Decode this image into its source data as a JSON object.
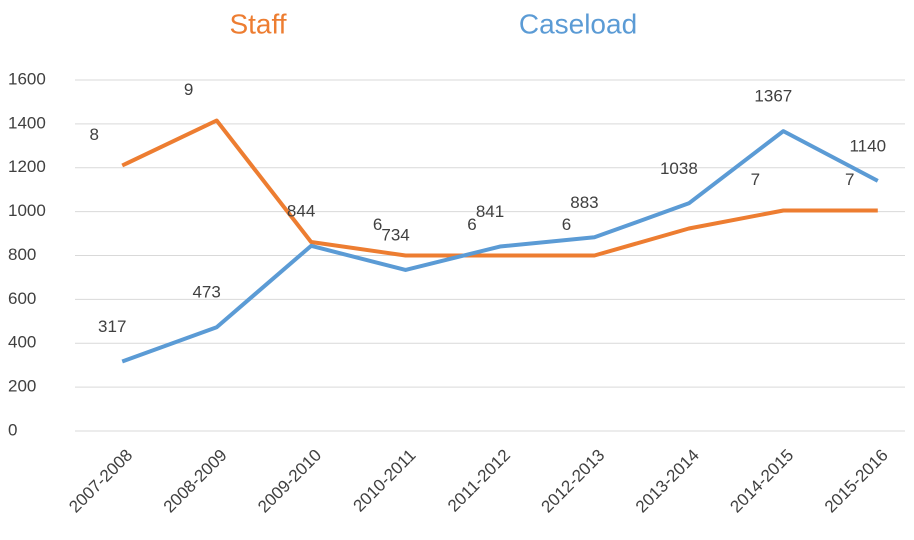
{
  "chart_data": {
    "type": "line",
    "categories": [
      "2007-2008",
      "2008-2009",
      "2009-2010",
      "2010-2011",
      "2011-2012",
      "2012-2013",
      "2013-2014",
      "2014-2015",
      "2015-2016"
    ],
    "series": [
      {
        "name": "Staff",
        "color": "#ed7d31",
        "axis": "y2",
        "values": [
          8,
          9,
          6.3,
          6,
          6,
          6,
          6.6,
          7,
          7
        ],
        "value_labels": [
          "8",
          "9",
          null,
          "6",
          "6",
          "6",
          null,
          "7",
          "7"
        ]
      },
      {
        "name": "Caseload",
        "color": "#5b9bd5",
        "values": [
          317,
          473,
          844,
          734,
          841,
          883,
          1038,
          1367,
          1140
        ]
      }
    ],
    "ylim": [
      0,
      1600
    ],
    "yticks": [
      0,
      200,
      400,
      600,
      800,
      1000,
      1200,
      1400,
      1600
    ],
    "y2lim": [
      2.1,
      9.9
    ],
    "grid": true
  }
}
